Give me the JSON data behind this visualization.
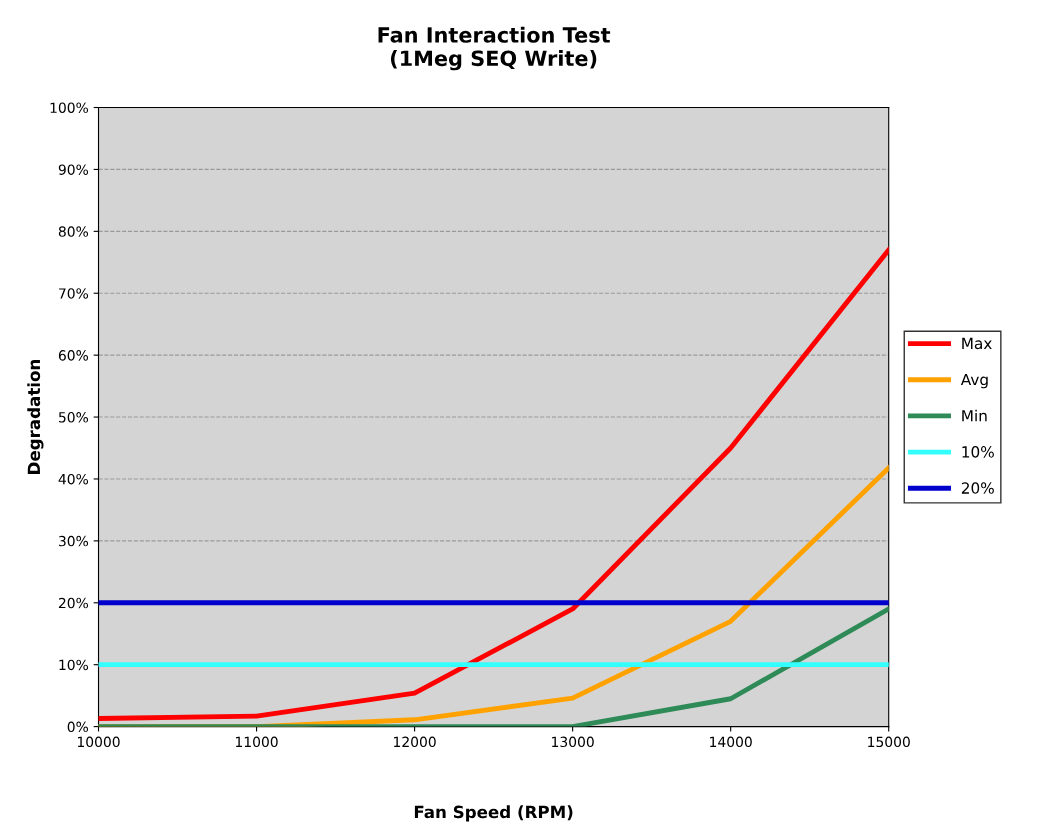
{
  "chart_data": {
    "type": "line",
    "title": "Fan Interaction Test\n(1Meg SEQ Write)",
    "xlabel": "Fan Speed (RPM)",
    "ylabel": "Degradation",
    "x": [
      10000,
      11000,
      12000,
      13000,
      14000,
      15000
    ],
    "series": [
      {
        "name": "Max",
        "color": "#ff0000",
        "values": [
          1.3,
          1.7,
          5.4,
          19,
          45,
          77
        ]
      },
      {
        "name": "Avg",
        "color": "#ffa200",
        "values": [
          0,
          0,
          1.1,
          4.6,
          17,
          41.8
        ]
      },
      {
        "name": "Min",
        "color": "#2e8b57",
        "values": [
          0,
          0,
          0,
          0,
          4.5,
          19
        ]
      },
      {
        "name": "10%",
        "color": "#33ffff",
        "values": [
          10,
          10,
          10,
          10,
          10,
          10
        ]
      },
      {
        "name": "20%",
        "color": "#0000cc",
        "values": [
          20,
          20,
          20,
          20,
          20,
          20
        ]
      }
    ],
    "xlim": [
      10000,
      15000
    ],
    "xticks": [
      10000,
      11000,
      12000,
      13000,
      14000,
      15000
    ],
    "ylim": [
      0,
      100
    ],
    "yticks": [
      {
        "value": 0,
        "label": "0%"
      },
      {
        "value": 10,
        "label": "10%"
      },
      {
        "value": 20,
        "label": "20%"
      },
      {
        "value": 30,
        "label": "30%"
      },
      {
        "value": 40,
        "label": "40%"
      },
      {
        "value": 50,
        "label": "50%"
      },
      {
        "value": 60,
        "label": "60%"
      },
      {
        "value": 70,
        "label": "70%"
      },
      {
        "value": 80,
        "label": "80%"
      },
      {
        "value": 90,
        "label": "90%"
      },
      {
        "value": 100,
        "label": "100%"
      }
    ],
    "grid": "y",
    "legend": "right",
    "marker": "none",
    "line_style": "solid"
  }
}
